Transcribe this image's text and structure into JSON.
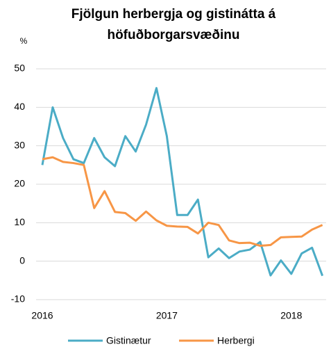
{
  "chart_data": {
    "type": "line",
    "title": [
      "Fjölgun herbergja og gistinátta á",
      "höfuðborgarsvæðinu"
    ],
    "ylabel": "%",
    "categories": [
      "2016",
      null,
      null,
      null,
      null,
      null,
      null,
      null,
      null,
      null,
      null,
      null,
      "2017",
      null,
      null,
      null,
      null,
      null,
      null,
      null,
      null,
      null,
      null,
      null,
      "2018",
      null,
      null,
      null
    ],
    "series": [
      {
        "name": "Gistinætur",
        "color": "#4bacc6",
        "values": [
          25,
          40,
          32,
          26.5,
          25.5,
          32,
          27,
          24.7,
          32.5,
          28.5,
          35.5,
          45,
          32.5,
          12,
          12,
          16,
          1,
          3.3,
          0.8,
          2.5,
          3,
          5,
          -3.7,
          0.2,
          -3.3,
          2,
          3.5,
          -3.8
        ]
      },
      {
        "name": "Herbergi",
        "color": "#f79646",
        "values": [
          26.5,
          27,
          25.8,
          25.5,
          25,
          13.8,
          18.2,
          12.8,
          12.5,
          10.5,
          12.9,
          10.6,
          9.2,
          9,
          8.9,
          7.2,
          10,
          9.4,
          5.4,
          4.7,
          4.8,
          4,
          4.2,
          6.2,
          6.3,
          6.4,
          8.2,
          9.4
        ]
      }
    ],
    "ylim": [
      -10,
      50
    ],
    "yticks": [
      -10,
      0,
      10,
      20,
      30,
      40,
      50
    ],
    "grid": true
  }
}
